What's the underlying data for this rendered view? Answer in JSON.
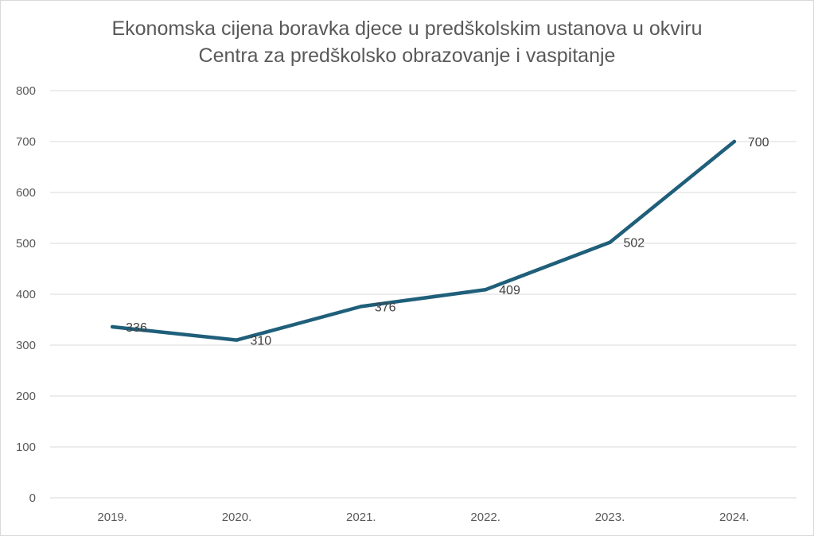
{
  "chart_data": {
    "type": "line",
    "title_lines": [
      "Ekonomska cijena boravka djece u predškolskim ustanova u okviru",
      "Centra za predškolsko obrazovanje i vaspitanje"
    ],
    "categories": [
      "2019.",
      "2020.",
      "2021.",
      "2022.",
      "2023.",
      "2024."
    ],
    "series": [
      {
        "values": [
          336,
          310,
          376,
          409,
          502,
          700
        ],
        "color": "#1f5f7a",
        "data_labels": [
          "336",
          "310",
          "376",
          "409",
          "502",
          "700"
        ]
      }
    ],
    "y_ticks": [
      "0",
      "100",
      "200",
      "300",
      "400",
      "500",
      "600",
      "700",
      "800"
    ],
    "ylim": [
      0,
      800
    ],
    "ystep": 100,
    "grid": true,
    "legend": "none",
    "colors": {
      "line": "#1f5f7a",
      "grid": "#d9d9d9",
      "text": "#595959"
    }
  }
}
